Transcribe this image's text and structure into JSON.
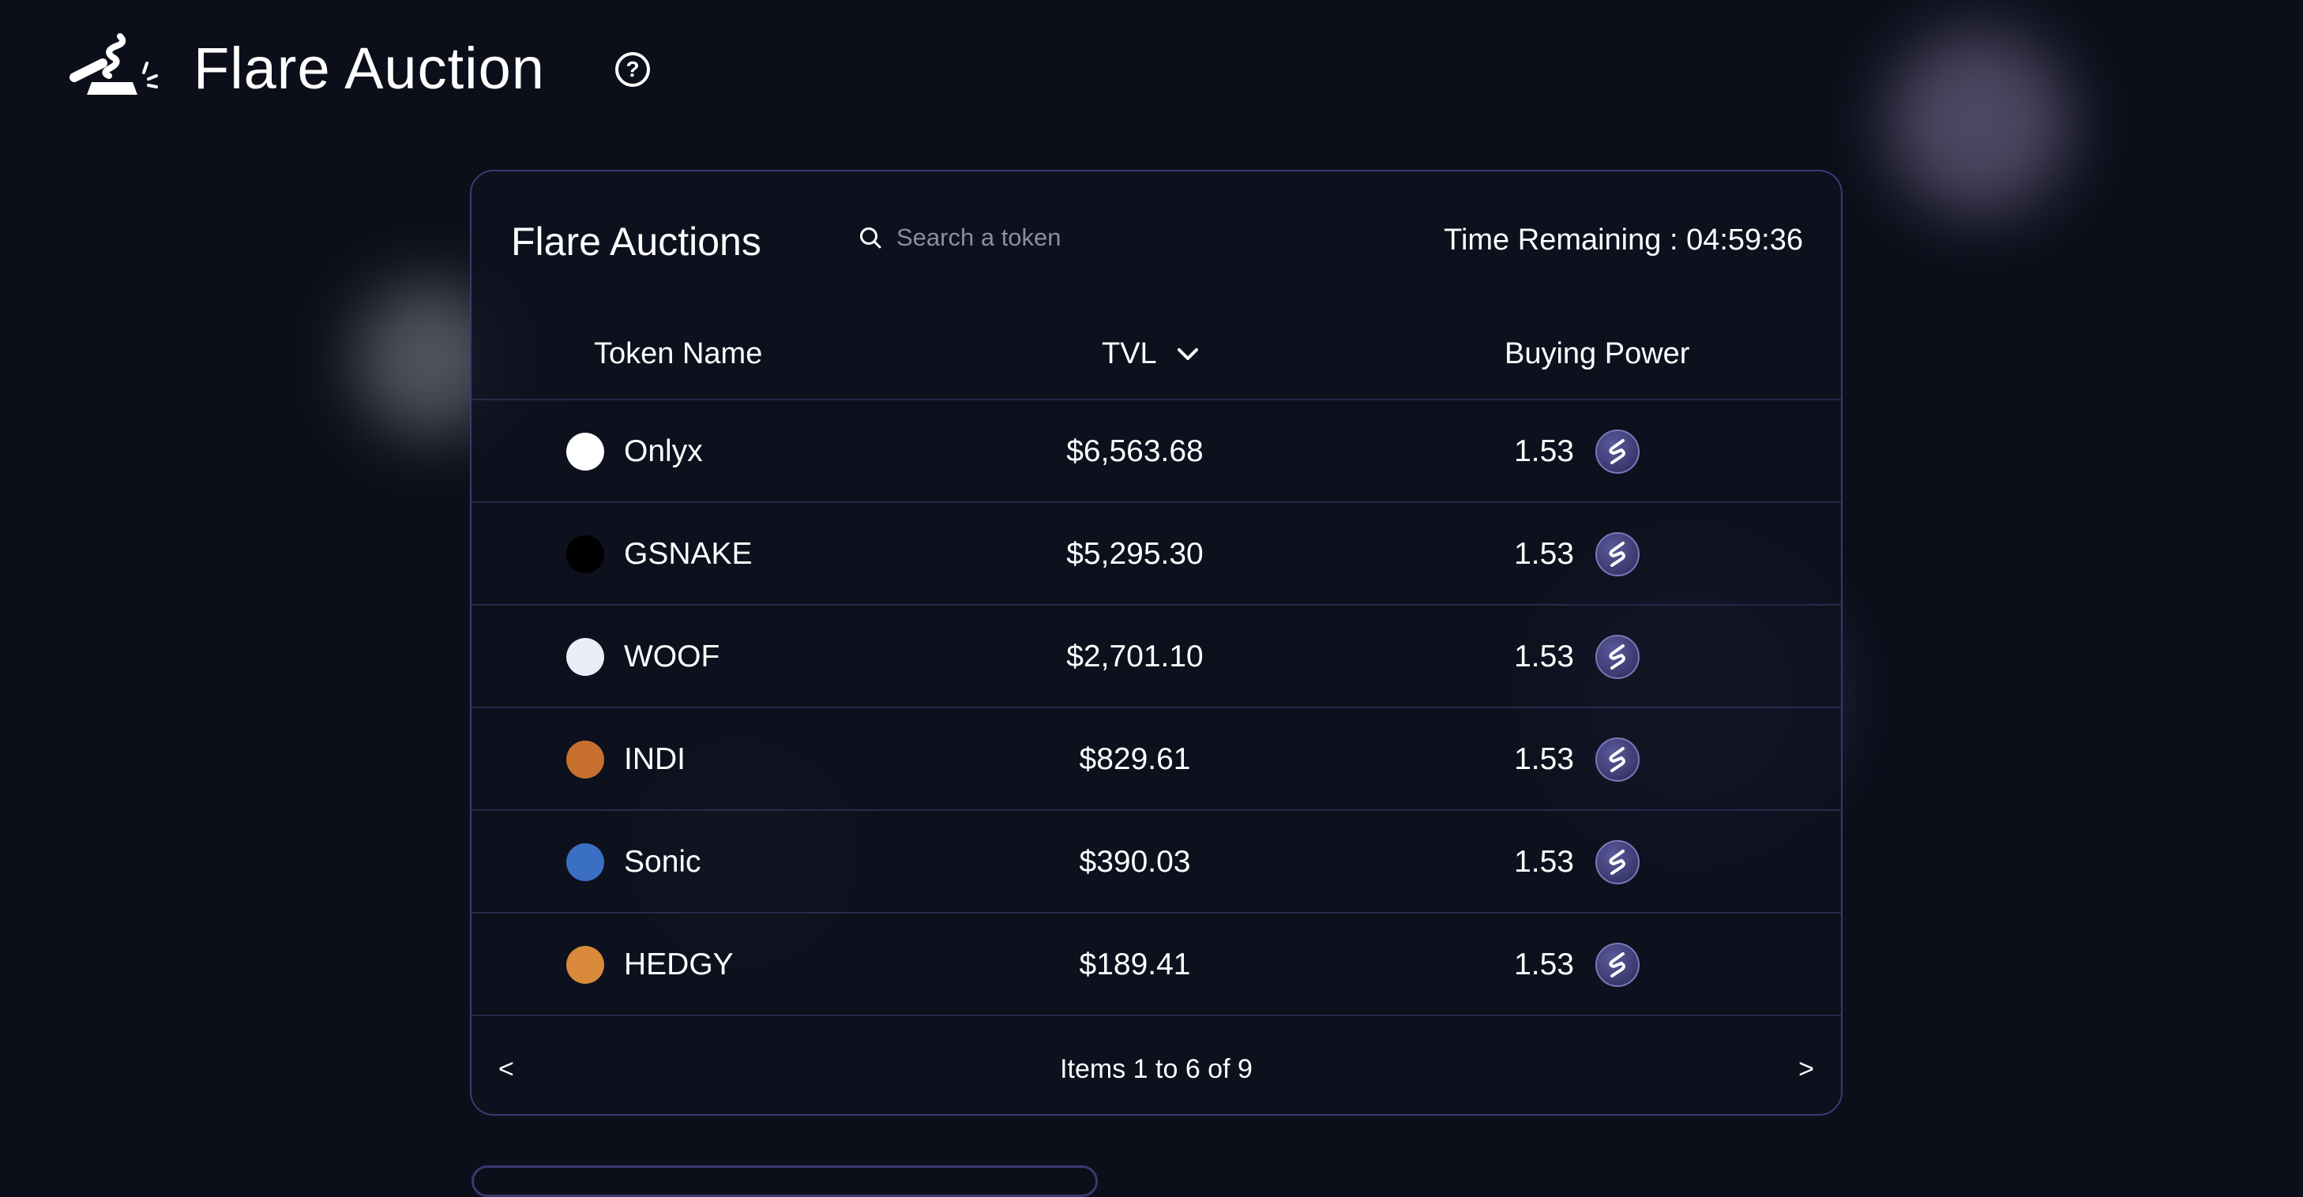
{
  "app": {
    "title": "Flare Auction",
    "help_icon": "question-circle-icon"
  },
  "auctions": {
    "title": "Flare Auctions",
    "search": {
      "placeholder": "Search a token",
      "value": ""
    },
    "time_remaining_label": "Time Remaining :",
    "time_remaining": "04:59:36",
    "columns": {
      "token": "Token Name",
      "tvl": "TVL",
      "buying_power": "Buying Power"
    },
    "rows": [
      {
        "name": "Onlyx",
        "tvl": "$6,563.68",
        "buying_power": "1.53"
      },
      {
        "name": "GSNAKE",
        "tvl": "$5,295.30",
        "buying_power": "1.53"
      },
      {
        "name": "WOOF",
        "tvl": "$2,701.10",
        "buying_power": "1.53"
      },
      {
        "name": "INDI",
        "tvl": "$829.61",
        "buying_power": "1.53"
      },
      {
        "name": "Sonic",
        "tvl": "$390.03",
        "buying_power": "1.53"
      },
      {
        "name": "HEDGY",
        "tvl": "$189.41",
        "buying_power": "1.53"
      }
    ],
    "pagination": {
      "prev": "<",
      "next": ">",
      "info": "Items 1 to 6 of 9"
    }
  },
  "colors": {
    "background": "#0c0f1a",
    "card_border": "#3a3a72",
    "sonic_icon": "#3b3a78"
  }
}
